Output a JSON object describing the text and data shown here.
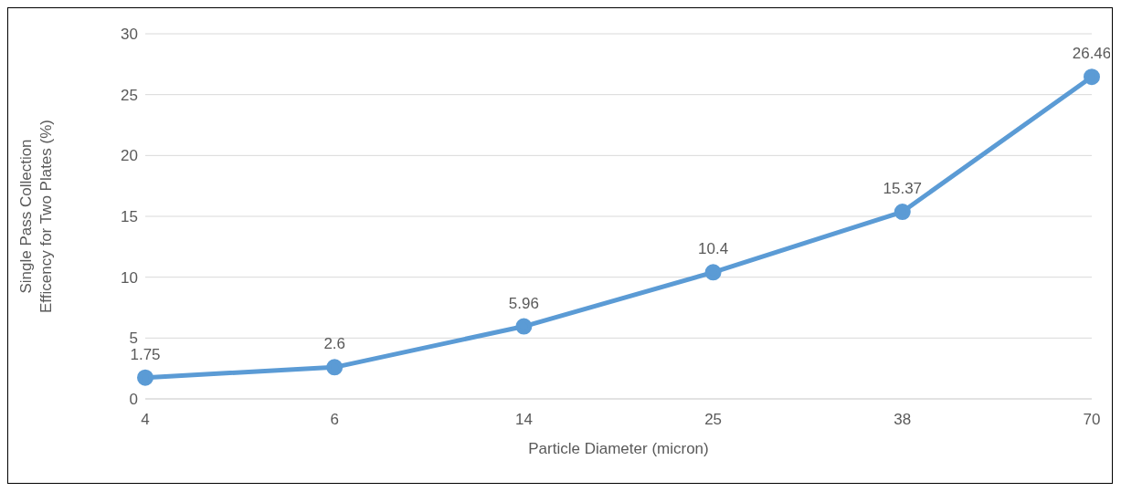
{
  "chart_data": {
    "type": "line",
    "xlabel": "Particle Diameter (micron)",
    "ylabel": "Single Pass Collection Efficency for Two Plates (%)",
    "categories": [
      "4",
      "6",
      "14",
      "25",
      "38",
      "70"
    ],
    "series": [
      {
        "color": "#5b9bd5",
        "values": [
          1.75,
          2.6,
          5.96,
          10.4,
          15.37,
          26.46
        ]
      }
    ],
    "ylim": [
      0,
      30
    ],
    "yticks": [
      0,
      5,
      10,
      15,
      20,
      25,
      30
    ],
    "grid": "y",
    "marker": "circle",
    "line_style": "solid",
    "data_labels": true,
    "legend": false
  }
}
